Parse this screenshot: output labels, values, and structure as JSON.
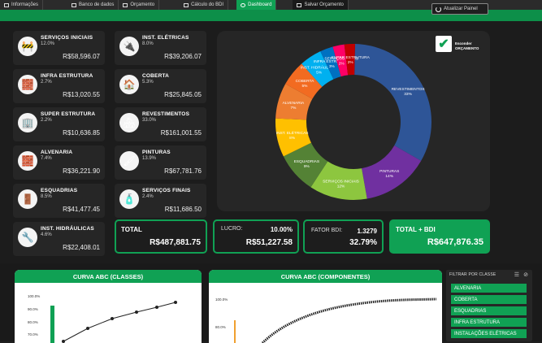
{
  "tabs": [
    {
      "label": "Informações",
      "active": false
    },
    {
      "label": "Banco de dados",
      "active": false
    },
    {
      "label": "Orçamento",
      "active": false
    },
    {
      "label": "Cálculo do BDI",
      "active": false
    },
    {
      "label": "Dashboard",
      "active": true
    },
    {
      "label": "Salvar Orçamento",
      "active": false
    }
  ],
  "update_button": {
    "label": "Atualizar Painel",
    "icon": "refresh-icon"
  },
  "cards": [
    {
      "name": "SERVIÇOS INICIAIS",
      "pct": "12.0%",
      "value": "R$58,596.07",
      "icon": "barrier-icon"
    },
    {
      "name": "INST. ELÉTRICAS",
      "pct": "8.0%",
      "value": "R$39,206.07",
      "icon": "electric-icon"
    },
    {
      "name": "INFRA ESTRUTURA",
      "pct": "2.7%",
      "value": "R$13,020.55",
      "icon": "foundation-icon"
    },
    {
      "name": "COBERTA",
      "pct": "5.3%",
      "value": "R$25,845.05",
      "icon": "roof-icon"
    },
    {
      "name": "SUPER ESTRUTURA",
      "pct": "2.2%",
      "value": "R$10,636.85",
      "icon": "building-icon"
    },
    {
      "name": "REVESTIMENTOS",
      "pct": "33.0%",
      "value": "R$161,001.55",
      "icon": "tiles-icon"
    },
    {
      "name": "ALVENARIA",
      "pct": "7.4%",
      "value": "R$36,221.90",
      "icon": "bricks-icon"
    },
    {
      "name": "PINTURAS",
      "pct": "13.9%",
      "value": "R$67,781.76",
      "icon": "paint-roller-icon"
    },
    {
      "name": "ESQUADRIAS",
      "pct": "8.5%",
      "value": "R$41,477.45",
      "icon": "door-icon"
    },
    {
      "name": "SERVIÇOS FINAIS",
      "pct": "2.4%",
      "value": "R$11,686.50",
      "icon": "cleaning-icon"
    },
    {
      "name": "INST. HIDRÁULICAS",
      "pct": "4.6%",
      "value": "R$22,408.01",
      "icon": "pipe-icon"
    }
  ],
  "kpis": {
    "total_label": "TOTAL",
    "total_value": "R$487,881.75",
    "lucro_label": "LUCRO:",
    "lucro_pct": "10.00%",
    "lucro_value": "R$51,227.58",
    "bdi_label": "FATOR BDI:",
    "bdi_factor": "1.3279",
    "bdi_pct": "32.79%",
    "total_bdi_label": "TOTAL + BDI",
    "total_bdi_value": "R$647,876.35"
  },
  "legend_toggle": {
    "line1": "Esconder",
    "line2": "ORÇAMENTO"
  },
  "chart_data": {
    "type": "pie",
    "donut": true,
    "slices": [
      {
        "label": "REVESTIMENTOS",
        "pct_label": "33%",
        "value": 33.0,
        "color": "#2e5597"
      },
      {
        "label": "PINTURAS",
        "pct_label": "14%",
        "value": 13.9,
        "color": "#7030a0"
      },
      {
        "label": "SERVIÇOS INICIAIS",
        "pct_label": "12%",
        "value": 12.0,
        "color": "#8dc63f"
      },
      {
        "label": "ESQUADRIAS",
        "pct_label": "9%",
        "value": 8.5,
        "color": "#548235"
      },
      {
        "label": "INST. ELÉTRICAS",
        "pct_label": "8%",
        "value": 8.0,
        "color": "#ffc000"
      },
      {
        "label": "ALVENARIA",
        "pct_label": "7%",
        "value": 7.4,
        "color": "#ed7d31"
      },
      {
        "label": "COBERTA",
        "pct_label": "5%",
        "value": 5.3,
        "color": "#f26b21"
      },
      {
        "label": "INST. HIDRÁULICAS",
        "pct_label": "5%",
        "value": 4.6,
        "color": "#00b0f0"
      },
      {
        "label": "INFRA ESTRUTURA",
        "pct_label": "3%",
        "value": 2.7,
        "color": "#0070c0"
      },
      {
        "label": "SERVIÇOS FINAIS",
        "pct_label": "2%",
        "value": 2.4,
        "color": "#ff0066"
      },
      {
        "label": "SUPER ESTRUTURA",
        "pct_label": "2%",
        "value": 2.2,
        "color": "#c00000"
      }
    ]
  },
  "curves": [
    {
      "title": "CURVA ABC (CLASSES)",
      "yticks": [
        "100.0%",
        "90.0%",
        "80.0%",
        "70.0%"
      ]
    },
    {
      "title": "CURVA ABC (COMPONENTES)",
      "yticks": [
        "100.0%",
        "80.0%"
      ]
    }
  ],
  "filter": {
    "header": "FILTRAR POR CLASSE",
    "items": [
      "ALVENARIA",
      "COBERTA",
      "ESQUADRIAS",
      "INFRA ESTRUTURA",
      "INSTALAÇÕES ELÉTRICAS"
    ]
  }
}
